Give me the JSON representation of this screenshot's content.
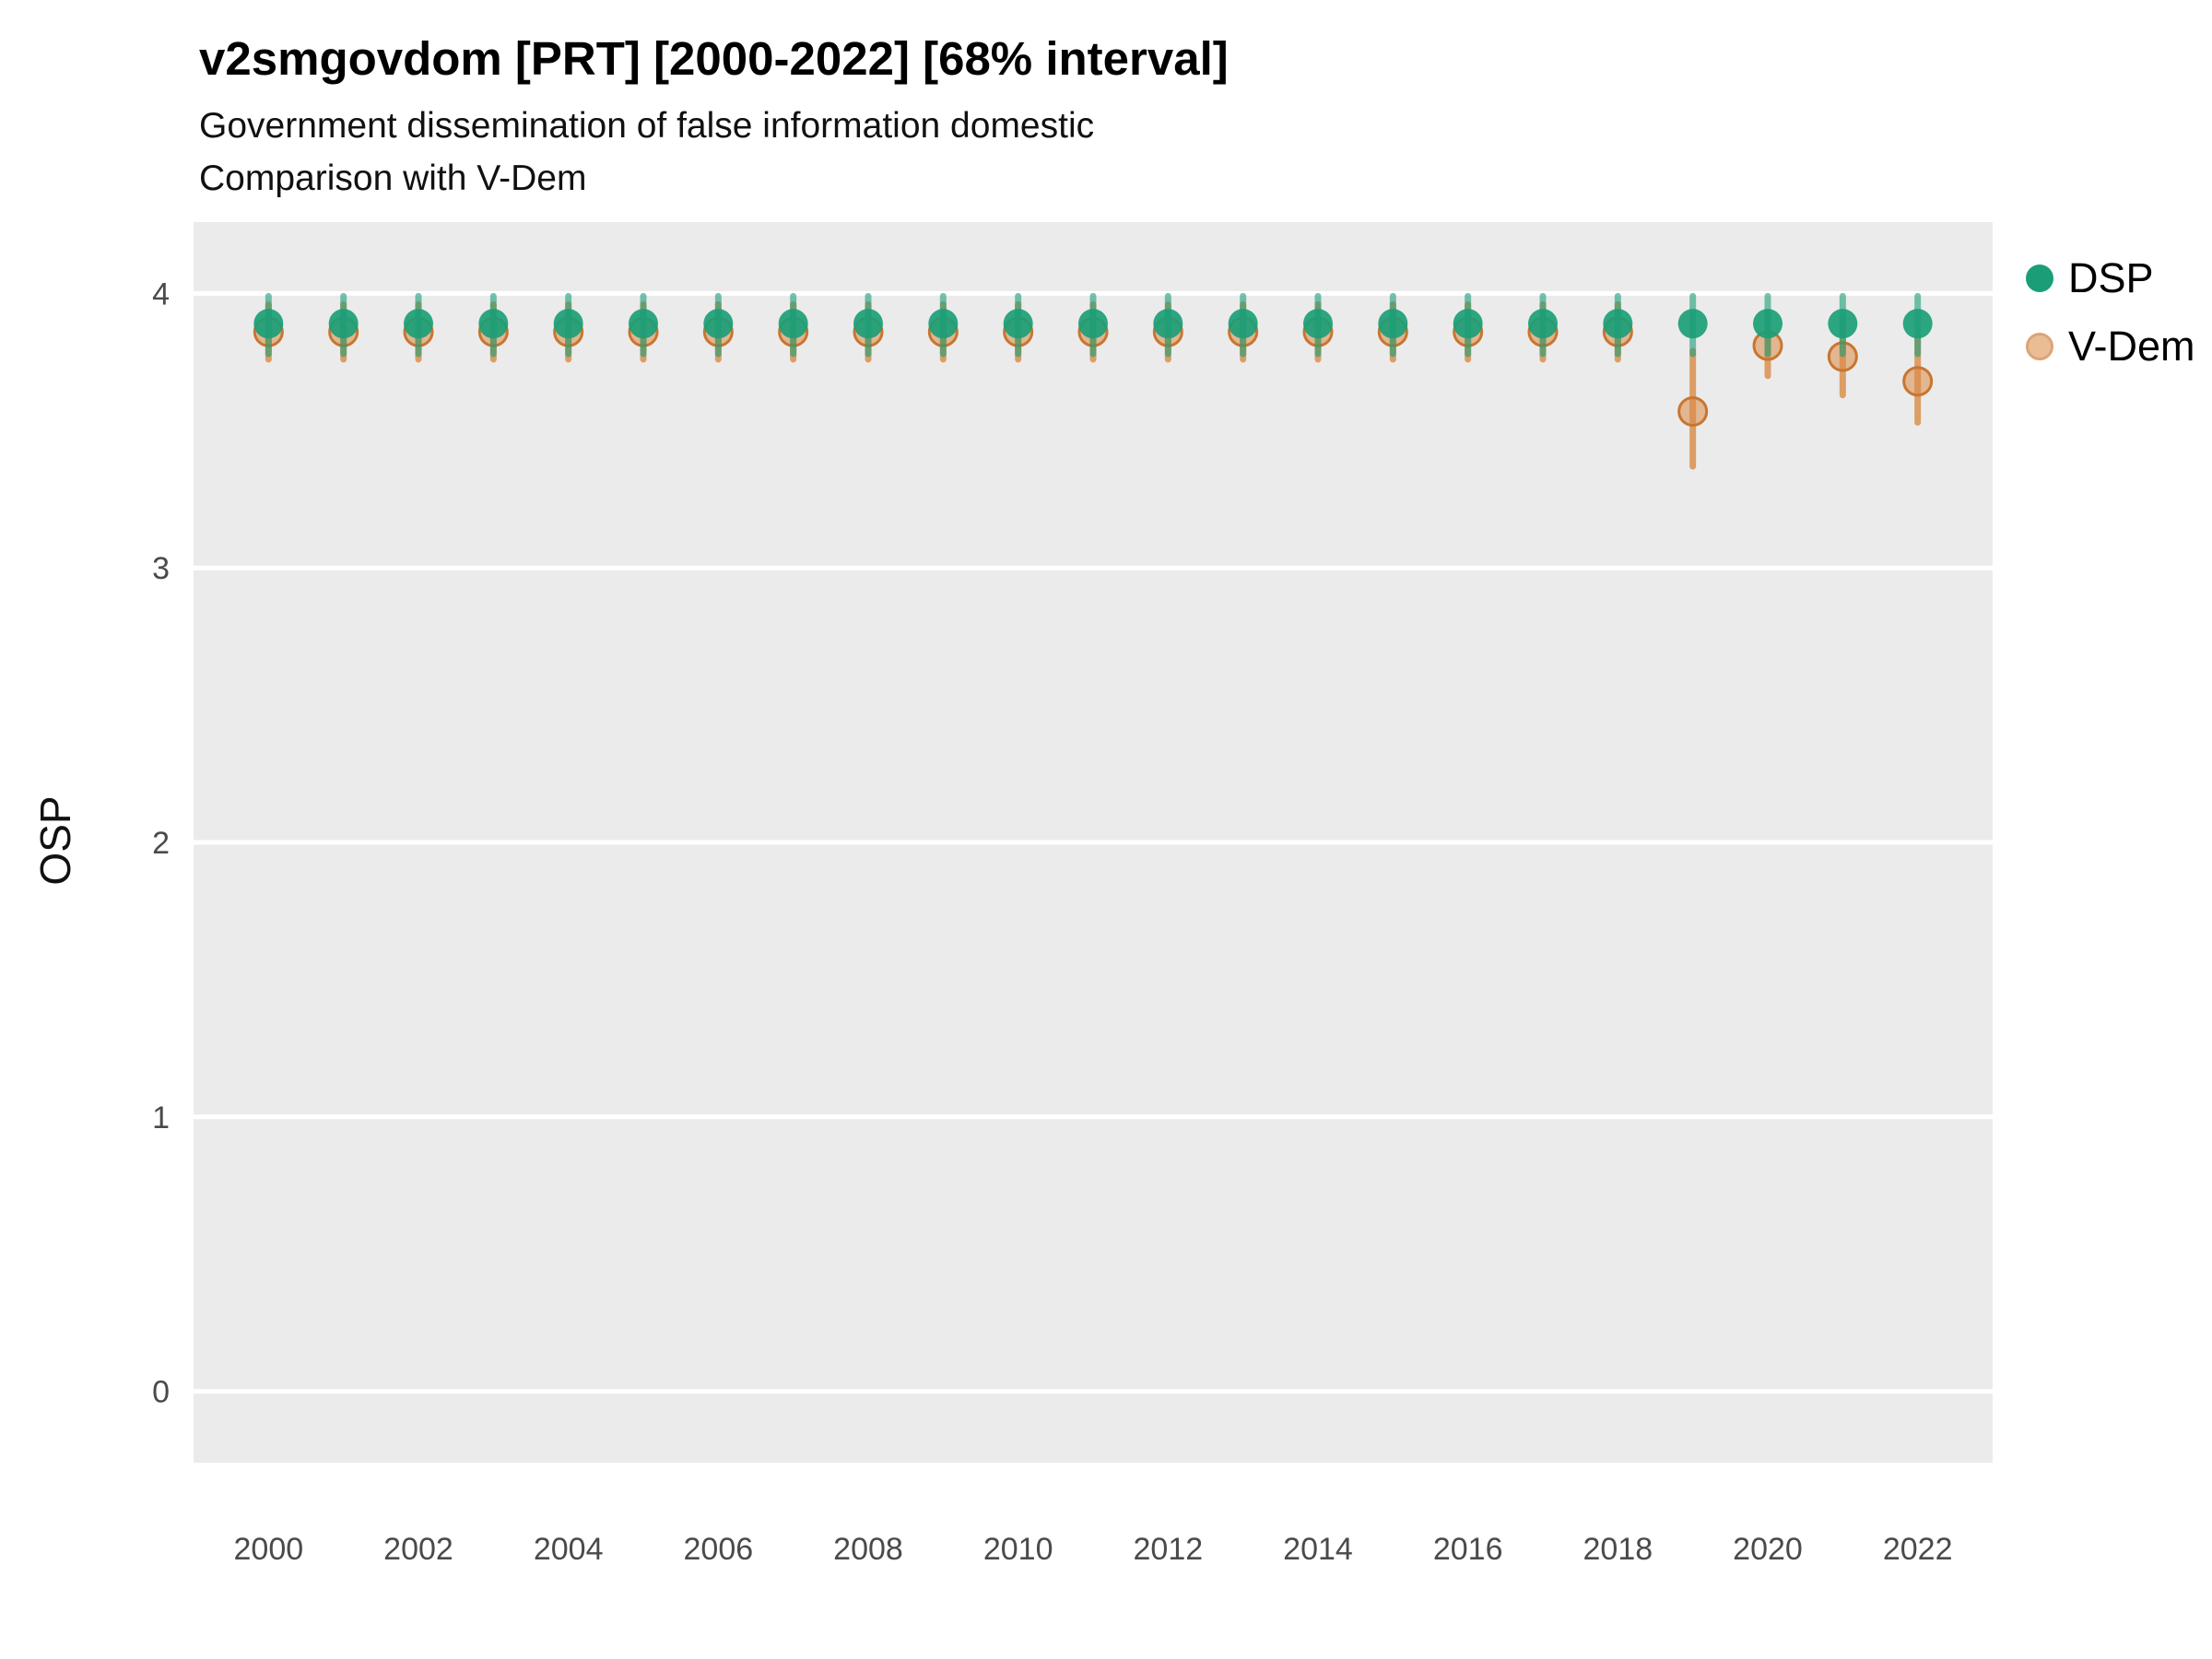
{
  "title": "v2smgovdom [PRT] [2000-2022] [68% interval]",
  "subtitle1": "Government dissemination of false information domestic",
  "subtitle2": "Comparison with V-Dem",
  "ylabel": "OSP",
  "legend": [
    {
      "label": "DSP",
      "color": "#1B9E77",
      "swatch_opacity": 1
    },
    {
      "label": "V-Dem",
      "color": "#E09B5C",
      "swatch_opacity": 0.65,
      "edge_color": "#C9752F"
    }
  ],
  "chart_data": {
    "type": "pointrange",
    "title": "v2smgovdom [PRT] [2000-2022] [68% interval]",
    "subtitle": [
      "Government dissemination of false information domestic",
      "Comparison with V-Dem"
    ],
    "xlabel": "",
    "ylabel": "OSP",
    "x_ticks": [
      2000,
      2002,
      2004,
      2006,
      2008,
      2010,
      2012,
      2014,
      2016,
      2018,
      2020,
      2022
    ],
    "y_ticks": [
      0,
      1,
      2,
      3,
      4
    ],
    "xlim": [
      1999,
      2023
    ],
    "ylim": [
      -0.26,
      4.26
    ],
    "panel_bg": "#EBEBEB",
    "grid_color": "#FFFFFF",
    "legend_position": "right",
    "series": [
      {
        "name": "V-Dem",
        "color": "#D98B45",
        "edge_color": "#C9752F",
        "fill_opacity": 0.55,
        "bar_opacity": 0.8,
        "points": [
          {
            "year": 2000,
            "est": 3.86,
            "lo": 3.76,
            "hi": 3.96
          },
          {
            "year": 2001,
            "est": 3.86,
            "lo": 3.76,
            "hi": 3.96
          },
          {
            "year": 2002,
            "est": 3.86,
            "lo": 3.76,
            "hi": 3.96
          },
          {
            "year": 2003,
            "est": 3.86,
            "lo": 3.76,
            "hi": 3.96
          },
          {
            "year": 2004,
            "est": 3.86,
            "lo": 3.76,
            "hi": 3.96
          },
          {
            "year": 2005,
            "est": 3.86,
            "lo": 3.76,
            "hi": 3.96
          },
          {
            "year": 2006,
            "est": 3.86,
            "lo": 3.76,
            "hi": 3.96
          },
          {
            "year": 2007,
            "est": 3.86,
            "lo": 3.76,
            "hi": 3.96
          },
          {
            "year": 2008,
            "est": 3.86,
            "lo": 3.76,
            "hi": 3.96
          },
          {
            "year": 2009,
            "est": 3.86,
            "lo": 3.76,
            "hi": 3.96
          },
          {
            "year": 2010,
            "est": 3.86,
            "lo": 3.76,
            "hi": 3.96
          },
          {
            "year": 2011,
            "est": 3.86,
            "lo": 3.76,
            "hi": 3.96
          },
          {
            "year": 2012,
            "est": 3.86,
            "lo": 3.76,
            "hi": 3.96
          },
          {
            "year": 2013,
            "est": 3.86,
            "lo": 3.76,
            "hi": 3.96
          },
          {
            "year": 2014,
            "est": 3.86,
            "lo": 3.76,
            "hi": 3.96
          },
          {
            "year": 2015,
            "est": 3.86,
            "lo": 3.76,
            "hi": 3.96
          },
          {
            "year": 2016,
            "est": 3.86,
            "lo": 3.76,
            "hi": 3.96
          },
          {
            "year": 2017,
            "est": 3.86,
            "lo": 3.76,
            "hi": 3.96
          },
          {
            "year": 2018,
            "est": 3.86,
            "lo": 3.76,
            "hi": 3.96
          },
          {
            "year": 2019,
            "est": 3.57,
            "lo": 3.37,
            "hi": 3.79
          },
          {
            "year": 2020,
            "est": 3.81,
            "lo": 3.7,
            "hi": 3.93
          },
          {
            "year": 2021,
            "est": 3.77,
            "lo": 3.63,
            "hi": 3.9
          },
          {
            "year": 2022,
            "est": 3.68,
            "lo": 3.53,
            "hi": 3.84
          }
        ]
      },
      {
        "name": "DSP",
        "color": "#1B9E77",
        "fill_opacity": 0.92,
        "bar_opacity": 0.6,
        "points": [
          {
            "year": 2000,
            "est": 3.89,
            "lo": 3.78,
            "hi": 3.99
          },
          {
            "year": 2001,
            "est": 3.89,
            "lo": 3.78,
            "hi": 3.99
          },
          {
            "year": 2002,
            "est": 3.89,
            "lo": 3.78,
            "hi": 3.99
          },
          {
            "year": 2003,
            "est": 3.89,
            "lo": 3.78,
            "hi": 3.99
          },
          {
            "year": 2004,
            "est": 3.89,
            "lo": 3.78,
            "hi": 3.99
          },
          {
            "year": 2005,
            "est": 3.89,
            "lo": 3.78,
            "hi": 3.99
          },
          {
            "year": 2006,
            "est": 3.89,
            "lo": 3.78,
            "hi": 3.99
          },
          {
            "year": 2007,
            "est": 3.89,
            "lo": 3.78,
            "hi": 3.99
          },
          {
            "year": 2008,
            "est": 3.89,
            "lo": 3.78,
            "hi": 3.99
          },
          {
            "year": 2009,
            "est": 3.89,
            "lo": 3.78,
            "hi": 3.99
          },
          {
            "year": 2010,
            "est": 3.89,
            "lo": 3.78,
            "hi": 3.99
          },
          {
            "year": 2011,
            "est": 3.89,
            "lo": 3.78,
            "hi": 3.99
          },
          {
            "year": 2012,
            "est": 3.89,
            "lo": 3.78,
            "hi": 3.99
          },
          {
            "year": 2013,
            "est": 3.89,
            "lo": 3.78,
            "hi": 3.99
          },
          {
            "year": 2014,
            "est": 3.89,
            "lo": 3.78,
            "hi": 3.99
          },
          {
            "year": 2015,
            "est": 3.89,
            "lo": 3.78,
            "hi": 3.99
          },
          {
            "year": 2016,
            "est": 3.89,
            "lo": 3.78,
            "hi": 3.99
          },
          {
            "year": 2017,
            "est": 3.89,
            "lo": 3.78,
            "hi": 3.99
          },
          {
            "year": 2018,
            "est": 3.89,
            "lo": 3.78,
            "hi": 3.99
          },
          {
            "year": 2019,
            "est": 3.89,
            "lo": 3.78,
            "hi": 3.99
          },
          {
            "year": 2020,
            "est": 3.89,
            "lo": 3.78,
            "hi": 3.99
          },
          {
            "year": 2021,
            "est": 3.89,
            "lo": 3.78,
            "hi": 3.99
          },
          {
            "year": 2022,
            "est": 3.89,
            "lo": 3.78,
            "hi": 3.99
          }
        ]
      }
    ]
  }
}
